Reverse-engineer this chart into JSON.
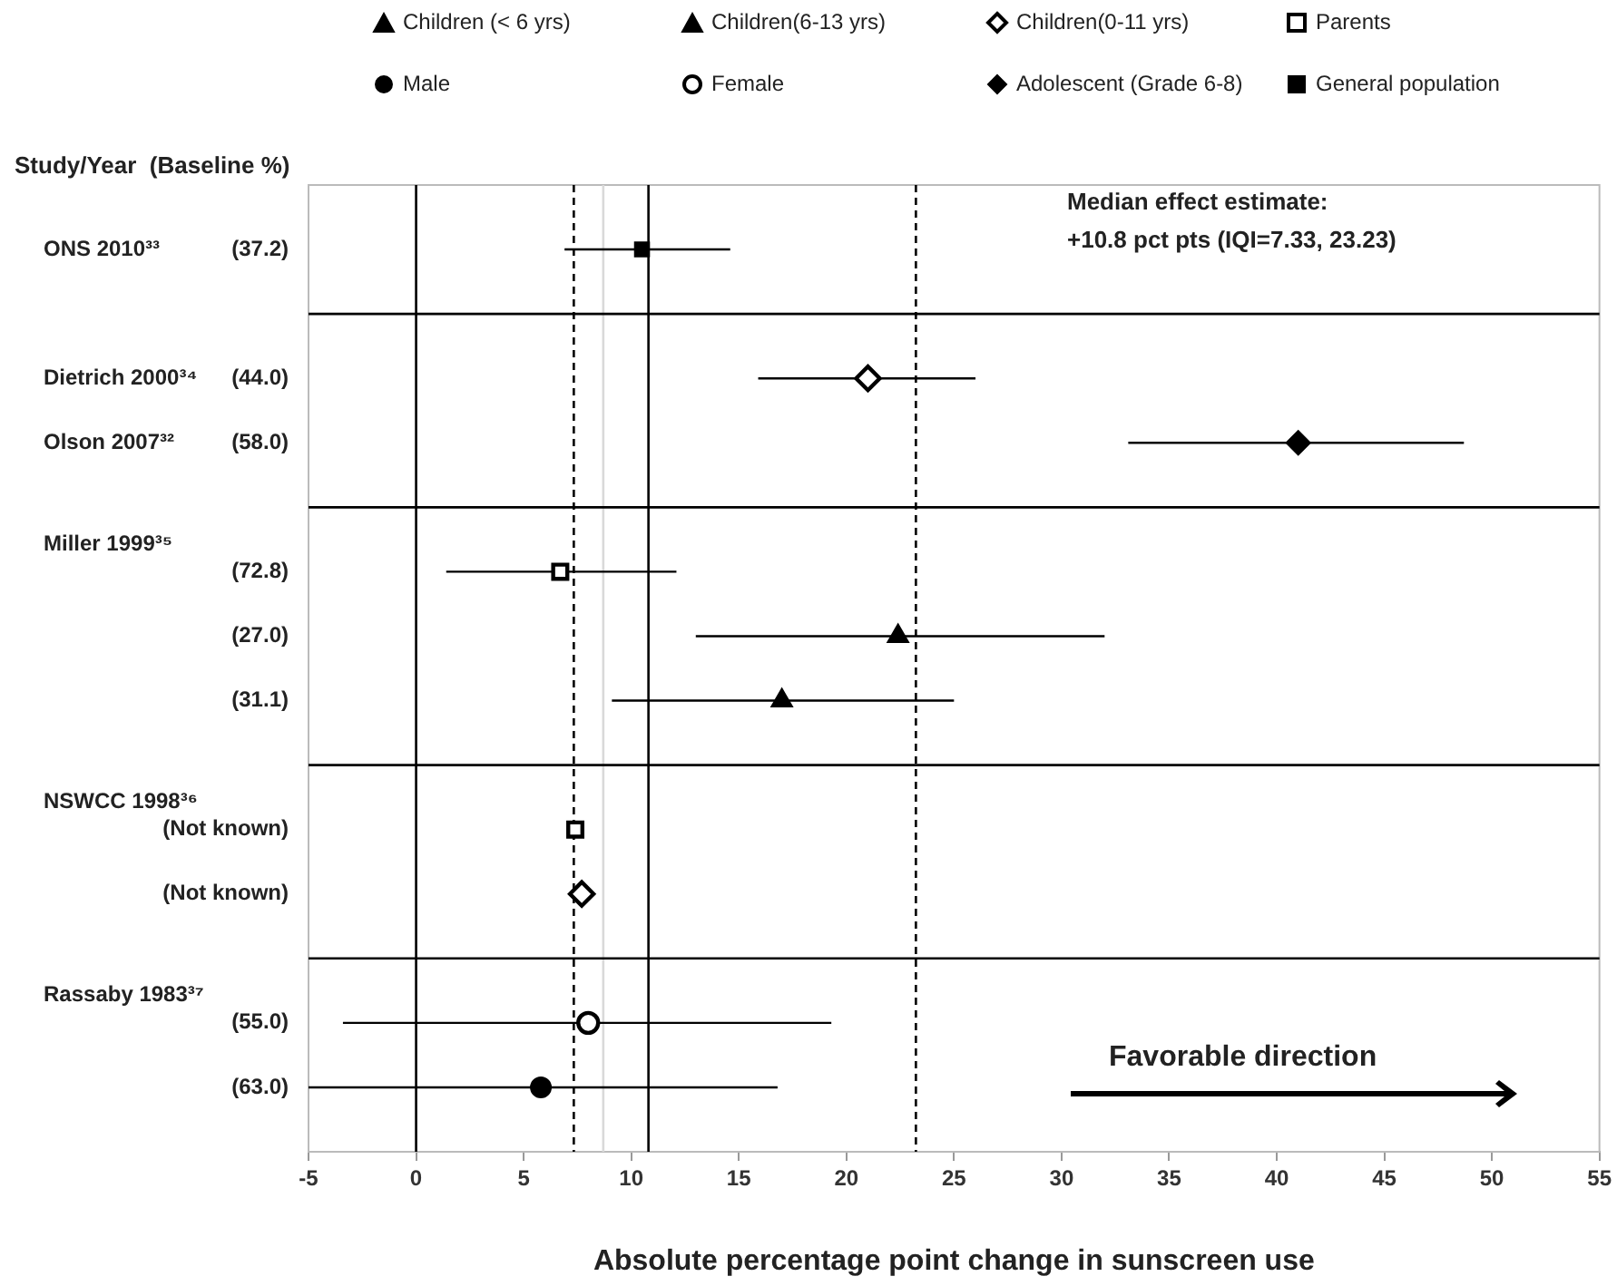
{
  "chart_data": {
    "type": "scatter",
    "orientation": "horizontal",
    "ylabel": "Study/Year  (Baseline %)",
    "xlabel": "Absolute percentage point change in sunscreen use",
    "categories": [
      null,
      "(37.2)",
      null,
      "(44.0)",
      "(58.0)",
      null,
      "(72.8)",
      "(27.0)",
      "(31.1)",
      null,
      "(Not known)",
      "(Not known)",
      null,
      "(55.0)",
      "(63.0)",
      null
    ],
    "y2_categories": [
      null,
      "ONS 2010³³",
      null,
      "Dietrich 2000³⁴",
      "Olson 2007³²",
      null,
      "Miller 1999³⁵",
      null,
      null,
      null,
      "NSWCC 1998³⁶",
      null,
      null,
      "Rassaby 1983³⁷",
      null,
      null
    ],
    "xlim": [
      -5,
      55
    ],
    "xticks": [
      -5,
      0,
      5,
      10,
      15,
      20,
      25,
      30,
      35,
      40,
      45,
      50,
      55
    ],
    "legend": "top",
    "grid": "y",
    "series": [
      {
        "name": "Children (< 6 yrs)",
        "color": "#000000",
        "marker": "triangle",
        "values": [
          null,
          null,
          null,
          null,
          null,
          null,
          null,
          22.4,
          null,
          null,
          null,
          null,
          null,
          null,
          null,
          null
        ],
        "errors": [
          null,
          null,
          null,
          null,
          null,
          null,
          null,
          [
            13,
            32
          ],
          null,
          null,
          null,
          null,
          null,
          null,
          null,
          null
        ]
      },
      {
        "name": "Children(6-13 yrs)",
        "color": "#000000",
        "marker": "triangle",
        "values": [
          null,
          null,
          null,
          null,
          null,
          null,
          null,
          null,
          17,
          null,
          null,
          null,
          null,
          null,
          null,
          null
        ],
        "errors": [
          null,
          null,
          null,
          null,
          null,
          null,
          null,
          null,
          [
            9.1,
            25
          ],
          null,
          null,
          null,
          null,
          null,
          null,
          null
        ]
      },
      {
        "name": "Children(0-11 yrs)",
        "color": "#ffffff",
        "marker": "diamond",
        "values": [
          null,
          null,
          null,
          21,
          null,
          null,
          null,
          null,
          null,
          null,
          null,
          7.7,
          null,
          null,
          null,
          null
        ],
        "errors": [
          null,
          null,
          null,
          [
            15.9,
            26
          ],
          null,
          null,
          null,
          null,
          null,
          null,
          null,
          null,
          null,
          null,
          null,
          null
        ]
      },
      {
        "name": "Parents",
        "color": "#ffffff",
        "marker": "square",
        "values": [
          null,
          null,
          null,
          null,
          null,
          null,
          6.7,
          null,
          null,
          null,
          7.4,
          null,
          null,
          null,
          null,
          null
        ],
        "errors": [
          null,
          null,
          null,
          null,
          null,
          null,
          [
            1.4,
            12.1
          ],
          null,
          null,
          null,
          null,
          null,
          null,
          null,
          null,
          null
        ]
      },
      {
        "name": "Male",
        "color": "#000000",
        "marker": "circle",
        "values": [
          null,
          null,
          null,
          null,
          null,
          null,
          null,
          null,
          null,
          null,
          null,
          null,
          null,
          null,
          5.8,
          null
        ],
        "errors": [
          null,
          null,
          null,
          null,
          null,
          null,
          null,
          null,
          null,
          null,
          null,
          null,
          null,
          null,
          [
            -5,
            16.8
          ],
          null
        ]
      },
      {
        "name": "Female",
        "color": "#ffffff",
        "marker": "circle",
        "values": [
          null,
          null,
          null,
          null,
          null,
          null,
          null,
          null,
          null,
          null,
          null,
          null,
          null,
          8,
          null,
          null
        ],
        "errors": [
          null,
          null,
          null,
          null,
          null,
          null,
          null,
          null,
          null,
          null,
          null,
          null,
          null,
          [
            -3.4,
            19.3
          ],
          null,
          null
        ]
      },
      {
        "name": "Adolescent (Grade 6-8)",
        "color": "#000000",
        "marker": "diamond",
        "values": [
          null,
          null,
          null,
          null,
          41,
          null,
          null,
          null,
          null,
          null,
          null,
          null,
          null,
          null,
          null,
          null
        ],
        "errors": [
          null,
          null,
          null,
          null,
          [
            33.1,
            48.7
          ],
          null,
          null,
          null,
          null,
          null,
          null,
          null,
          null,
          null,
          null,
          null
        ]
      },
      {
        "name": "General population",
        "color": "#000000",
        "marker": "square",
        "values": [
          null,
          10.5,
          null,
          null,
          null,
          null,
          null,
          null,
          null,
          null,
          null,
          null,
          null,
          null,
          null,
          null
        ],
        "errors": [
          null,
          [
            6.9,
            14.6
          ],
          null,
          null,
          null,
          null,
          null,
          null,
          null,
          null,
          null,
          null,
          null,
          null,
          null,
          null
        ]
      }
    ],
    "ref_lines": [
      {
        "axis": "x",
        "value": 0,
        "color": "#000000",
        "line_style": "solid"
      },
      {
        "axis": "x",
        "value": 7.33,
        "color": "#000000",
        "line_style": "dashed"
      },
      {
        "axis": "x",
        "value": 8.7,
        "color": "#d9d9d9",
        "line_style": "solid"
      },
      {
        "axis": "x",
        "value": 10.8,
        "color": "#000000",
        "line_style": "solid"
      },
      {
        "axis": "x",
        "value": 23.23,
        "color": "#000000",
        "line_style": "dashed"
      }
    ],
    "annotations": [
      "Median effect estimate:\n+10.8 pct pts (IQI=7.33, 23.23)",
      "Favorable direction"
    ]
  }
}
